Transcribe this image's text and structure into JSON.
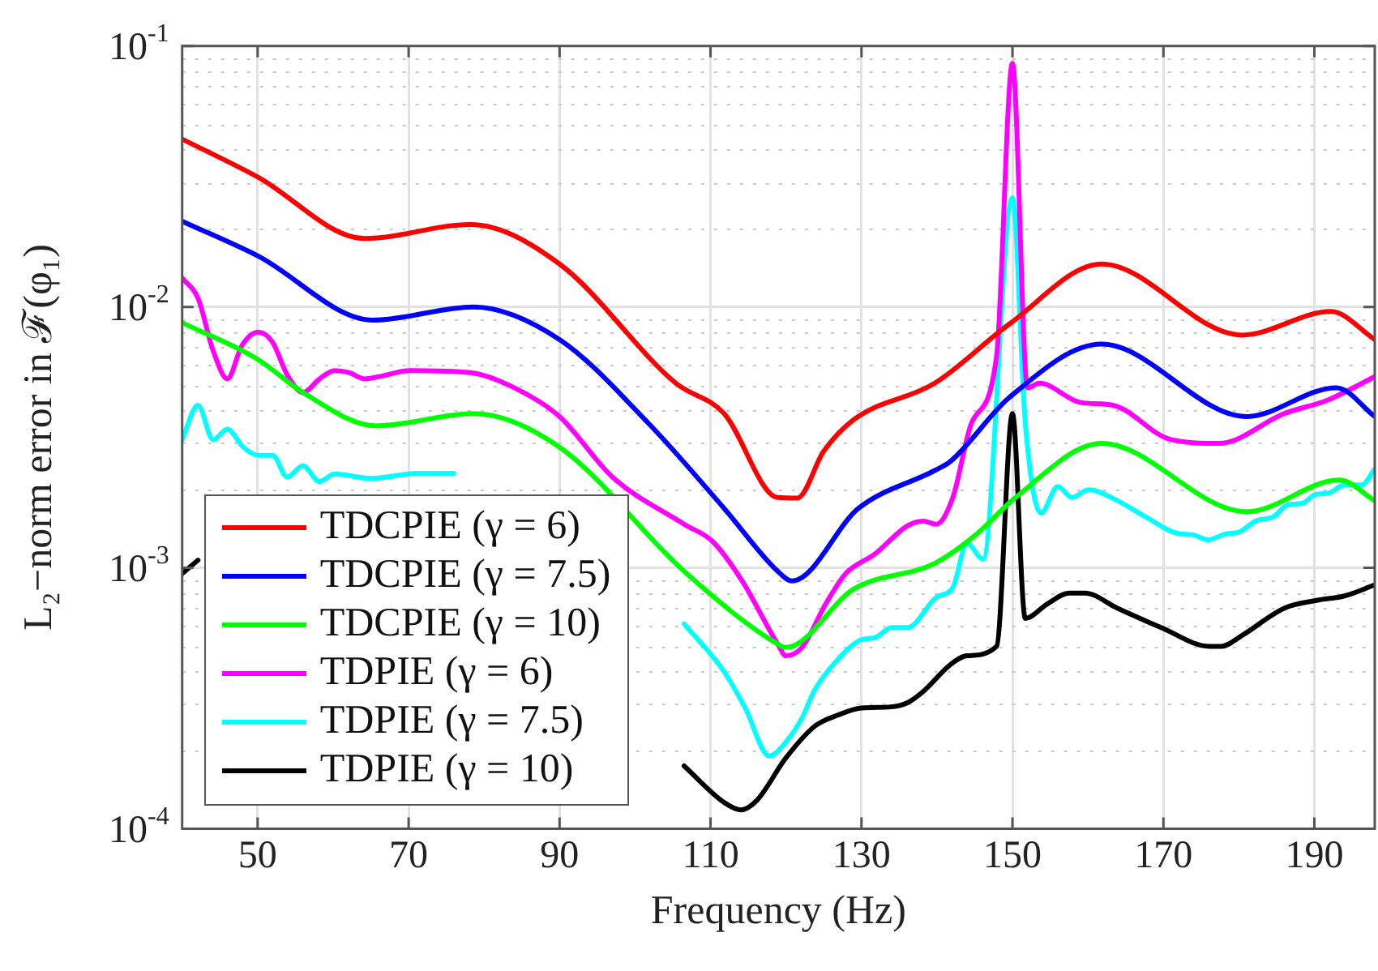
{
  "chart_data": {
    "type": "line",
    "xlabel": "Frequency (Hz)",
    "ylabel": "L₂−norm error in ℱ(φ₁)",
    "xlim": [
      40,
      198
    ],
    "xticks": [
      50,
      70,
      90,
      110,
      130,
      150,
      170,
      190
    ],
    "ylim": [
      0.0001,
      0.1
    ],
    "yticks": [
      {
        "value": 0.0001,
        "label": "10$^{-4}$"
      },
      {
        "value": 0.001,
        "label": "10$^{-3}$"
      },
      {
        "value": 0.01,
        "label": "10$^{-2}$"
      },
      {
        "value": 0.1,
        "label": "10$^{-1}$"
      }
    ],
    "log": "y",
    "grid": true,
    "legend": "bottom left",
    "marker": "none",
    "line_style": "solid",
    "series": [
      {
        "name": "TDCPIE (γ = 6)",
        "color": "#ff0000",
        "x": [
          40,
          50,
          64.2,
          78.2,
          90,
          105.4,
          111.8,
          118.9,
          121.5,
          125,
          129,
          139.7,
          149.6,
          161.8,
          180.4,
          192.2,
          198
        ],
        "values": [
          0.044,
          0.0315,
          0.0183,
          0.0207,
          0.0146,
          0.0051,
          0.0039,
          0.00186,
          0.00185,
          0.0028,
          0.0037,
          0.0051,
          0.0086,
          0.0146,
          0.0078,
          0.0096,
          0.0075
        ]
      },
      {
        "name": "TDCPIE (γ = 7.5)",
        "color": "#0000ff",
        "x": [
          40,
          50,
          65.3,
          78.6,
          90,
          101.7,
          111.8,
          118.9,
          120.8,
          129.6,
          139.7,
          141.8,
          149.6,
          161.8,
          181,
          192.9,
          198
        ],
        "values": [
          0.0213,
          0.0157,
          0.0089,
          0.01,
          0.0075,
          0.0036,
          0.00169,
          0.00097,
          0.00089,
          0.00169,
          0.00236,
          0.00256,
          0.0045,
          0.0072,
          0.0038,
          0.0049,
          0.0038
        ]
      },
      {
        "name": "TDCPIE (γ = 10)",
        "color": "#00ff00",
        "x": [
          40,
          50,
          56,
          65.7,
          78.6,
          90,
          106.5,
          118.9,
          120,
          129,
          139.7,
          145.3,
          150.4,
          161.8,
          181,
          193.3,
          198
        ],
        "values": [
          0.0087,
          0.0063,
          0.0047,
          0.0035,
          0.0039,
          0.0029,
          0.00097,
          0.00051,
          0.000495,
          0.00083,
          0.00104,
          0.00135,
          0.00186,
          0.003,
          0.00164,
          0.00217,
          0.00181
        ]
      },
      {
        "name": "TDPIE (γ = 6)",
        "color": "#ff00ff",
        "x": [
          40,
          42.1,
          44.1,
          46,
          47.9,
          50.1,
          52,
          53.9,
          56,
          58.2,
          60.2,
          62.1,
          64.2,
          66,
          70.2,
          78.2,
          84,
          90,
          97,
          106.5,
          110.3,
          114.2,
          118.9,
          120,
          122.1,
          125.3,
          127.9,
          131.8,
          136.1,
          138.2,
          139.9,
          142.1,
          144.6,
          147.9,
          150,
          152,
          153.6,
          159,
          163.3,
          171,
          177.4,
          186,
          191.8,
          198
        ],
        "values": [
          0.0129,
          0.0108,
          0.0068,
          0.0053,
          0.0071,
          0.008,
          0.0073,
          0.0055,
          0.0047,
          0.0053,
          0.0057,
          0.0056,
          0.0053,
          0.0054,
          0.0057,
          0.0056,
          0.0049,
          0.0038,
          0.00223,
          0.00147,
          0.00126,
          0.00089,
          0.00051,
          0.00046,
          0.000495,
          0.00073,
          0.00095,
          0.00113,
          0.00145,
          0.00151,
          0.00147,
          0.00186,
          0.0036,
          0.0065,
          0.086,
          0.0049,
          0.0051,
          0.0043,
          0.0042,
          0.0031,
          0.003,
          0.0039,
          0.0044,
          0.0054
        ]
      },
      {
        "name": "TDPIE (γ = 7.5)",
        "color": "#00ffff",
        "x": [
          40,
          42.1,
          44.1,
          46,
          48.1,
          50.1,
          52,
          53.9,
          56,
          58.2,
          60.2,
          65,
          71,
          76,
          80,
          106.5,
          111.8,
          114.6,
          117.8,
          120,
          122.1,
          123.8,
          126.4,
          130,
          131.8,
          134,
          136.1,
          139.9,
          142.1,
          144,
          146.1,
          150,
          151.7,
          153.8,
          156,
          157.9,
          160.1,
          163.9,
          167.6,
          172.1,
          173.8,
          175.9,
          178.3,
          180,
          182.2,
          184.6,
          186.4,
          188.5,
          190.1,
          191.8,
          194,
          196.3,
          198
        ],
        "values": [
          0.0031,
          0.0042,
          0.0031,
          0.0034,
          0.0029,
          0.0027,
          0.0027,
          0.00223,
          0.00246,
          0.00214,
          0.00229,
          0.0022,
          0.0023,
          0.0023,
          null,
          0.00061,
          0.0004,
          0.00029,
          0.00019,
          0.000215,
          0.000265,
          0.00034,
          0.00043,
          0.00053,
          0.00054,
          0.00059,
          0.00059,
          0.00077,
          0.00084,
          0.00124,
          0.00108,
          0.0262,
          0.0036,
          0.00162,
          0.00205,
          0.00186,
          0.00199,
          0.00181,
          0.00157,
          0.00135,
          0.00134,
          0.00128,
          0.00135,
          0.00137,
          0.00151,
          0.00157,
          0.00174,
          0.00177,
          0.00191,
          0.00193,
          0.00208,
          0.00208,
          0.00239
        ]
      },
      {
        "name": "TDPIE (γ = 10)",
        "color": "#000000",
        "x": [
          40,
          42.1,
          45,
          106.5,
          111.8,
          114,
          116.1,
          120,
          123.8,
          126.8,
          130,
          133.9,
          136.1,
          138.2,
          141.8,
          144,
          147.9,
          150,
          151.7,
          154.7,
          157.5,
          159.6,
          163.9,
          169.7,
          176.1,
          177.7,
          180.4,
          186,
          190.3,
          194,
          198
        ],
        "values": [
          0.00095,
          0.00107,
          null,
          0.000174,
          0.000126,
          0.000118,
          0.000128,
          0.000187,
          0.000247,
          0.000272,
          0.00029,
          0.000293,
          0.000304,
          0.000336,
          0.000426,
          0.00046,
          0.0005,
          0.0039,
          0.00064,
          0.00073,
          0.0008,
          0.0008,
          0.0007,
          0.00059,
          0.0005,
          0.0005,
          0.00055,
          0.0007,
          0.00075,
          0.00078,
          0.00086
        ]
      }
    ]
  }
}
